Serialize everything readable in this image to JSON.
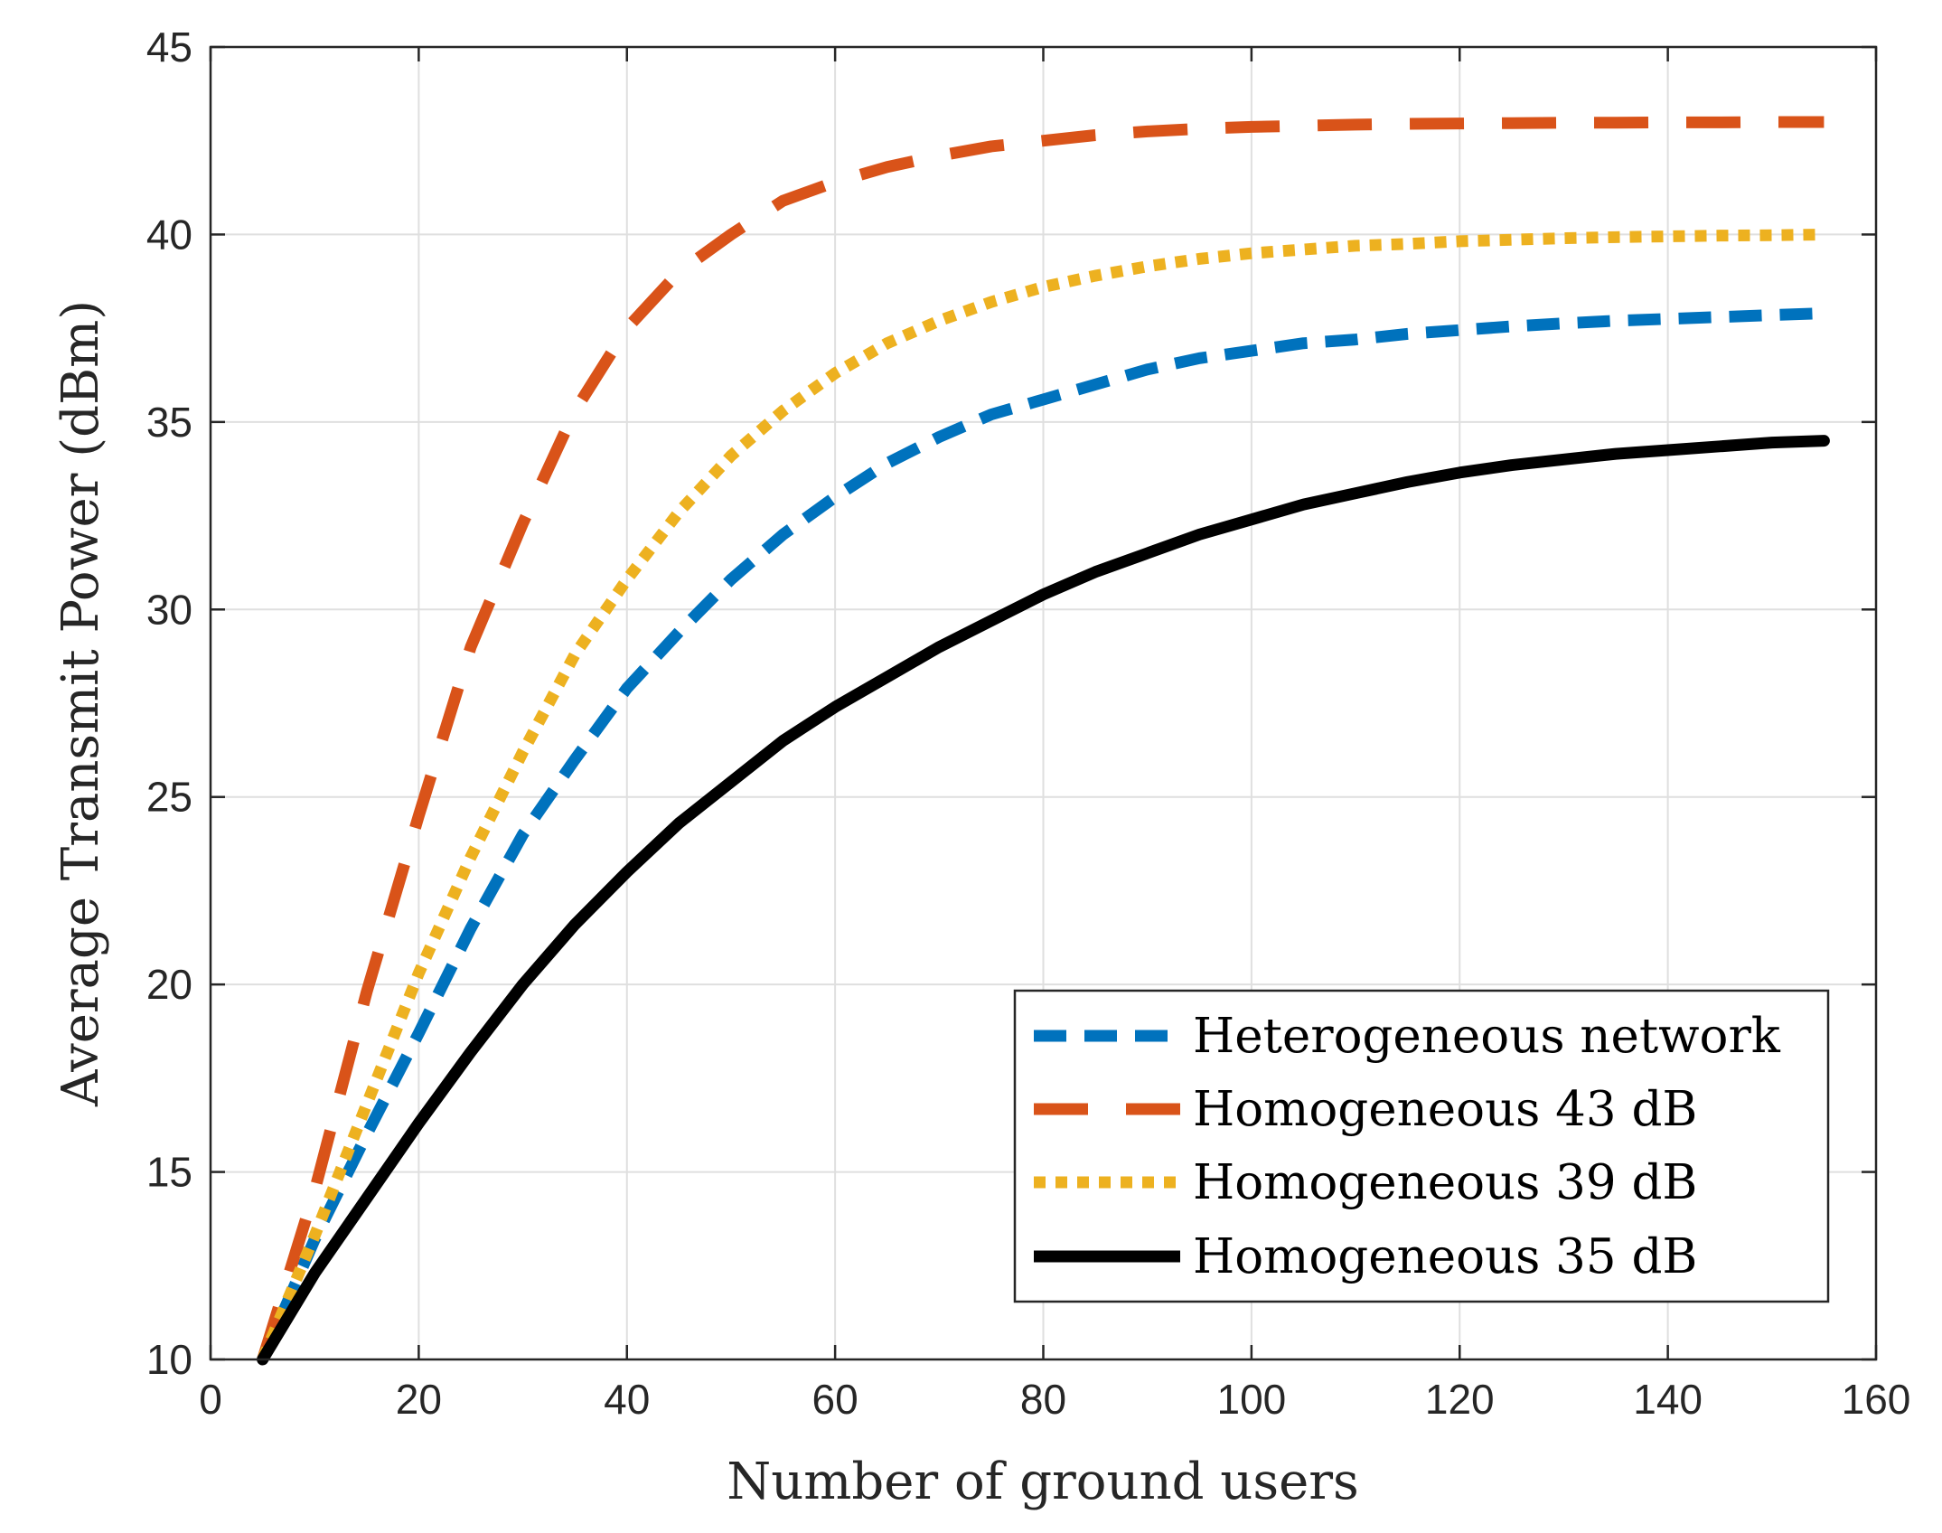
{
  "chart_data": {
    "type": "line",
    "title": "",
    "xlabel": "Number of ground users",
    "ylabel": "Average Transmit Power (dBm)",
    "xlim": [
      0,
      160
    ],
    "ylim": [
      10,
      45
    ],
    "xticks": [
      0,
      20,
      40,
      60,
      80,
      100,
      120,
      140,
      160
    ],
    "yticks": [
      10,
      15,
      20,
      25,
      30,
      35,
      40,
      45
    ],
    "grid": true,
    "legend_position": "bottom-right",
    "x": [
      5,
      10,
      15,
      20,
      25,
      30,
      35,
      40,
      45,
      50,
      55,
      60,
      65,
      70,
      75,
      80,
      85,
      90,
      95,
      100,
      105,
      110,
      115,
      120,
      125,
      130,
      135,
      140,
      145,
      150,
      155
    ],
    "series": [
      {
        "name": "Heterogeneous network",
        "color": "#0072BD",
        "style": "dashed",
        "values": [
          10.0,
          13.2,
          16.0,
          18.7,
          21.5,
          24.0,
          26.0,
          27.9,
          29.4,
          30.8,
          32.0,
          33.0,
          33.9,
          34.6,
          35.2,
          35.6,
          36.0,
          36.4,
          36.7,
          36.9,
          37.1,
          37.2,
          37.35,
          37.45,
          37.55,
          37.63,
          37.7,
          37.75,
          37.8,
          37.85,
          37.9
        ]
      },
      {
        "name": "Homogeneous 43 dB",
        "color": "#D95319",
        "style": "long-dashed",
        "values": [
          10.0,
          14.5,
          19.8,
          24.5,
          29.0,
          32.3,
          35.3,
          37.5,
          39.0,
          40.0,
          40.9,
          41.4,
          41.8,
          42.1,
          42.35,
          42.5,
          42.65,
          42.75,
          42.82,
          42.87,
          42.9,
          42.93,
          42.95,
          42.96,
          42.97,
          42.98,
          42.98,
          42.99,
          42.99,
          43.0,
          43.0
        ]
      },
      {
        "name": "Homogeneous 39 dB",
        "color": "#EDB120",
        "style": "dotted",
        "values": [
          10.0,
          13.3,
          16.8,
          20.3,
          23.4,
          26.2,
          28.8,
          30.8,
          32.6,
          34.1,
          35.3,
          36.3,
          37.1,
          37.7,
          38.2,
          38.6,
          38.9,
          39.15,
          39.35,
          39.5,
          39.6,
          39.7,
          39.75,
          39.82,
          39.86,
          39.9,
          39.93,
          39.95,
          39.97,
          39.98,
          40.0
        ]
      },
      {
        "name": "Homogeneous 35 dB",
        "color": "#000000",
        "style": "solid",
        "values": [
          10.0,
          12.3,
          14.3,
          16.3,
          18.2,
          20.0,
          21.6,
          23.0,
          24.3,
          25.4,
          26.5,
          27.4,
          28.2,
          29.0,
          29.7,
          30.4,
          31.0,
          31.5,
          32.0,
          32.4,
          32.8,
          33.1,
          33.4,
          33.65,
          33.85,
          34.0,
          34.15,
          34.25,
          34.35,
          34.45,
          34.5
        ]
      }
    ]
  }
}
